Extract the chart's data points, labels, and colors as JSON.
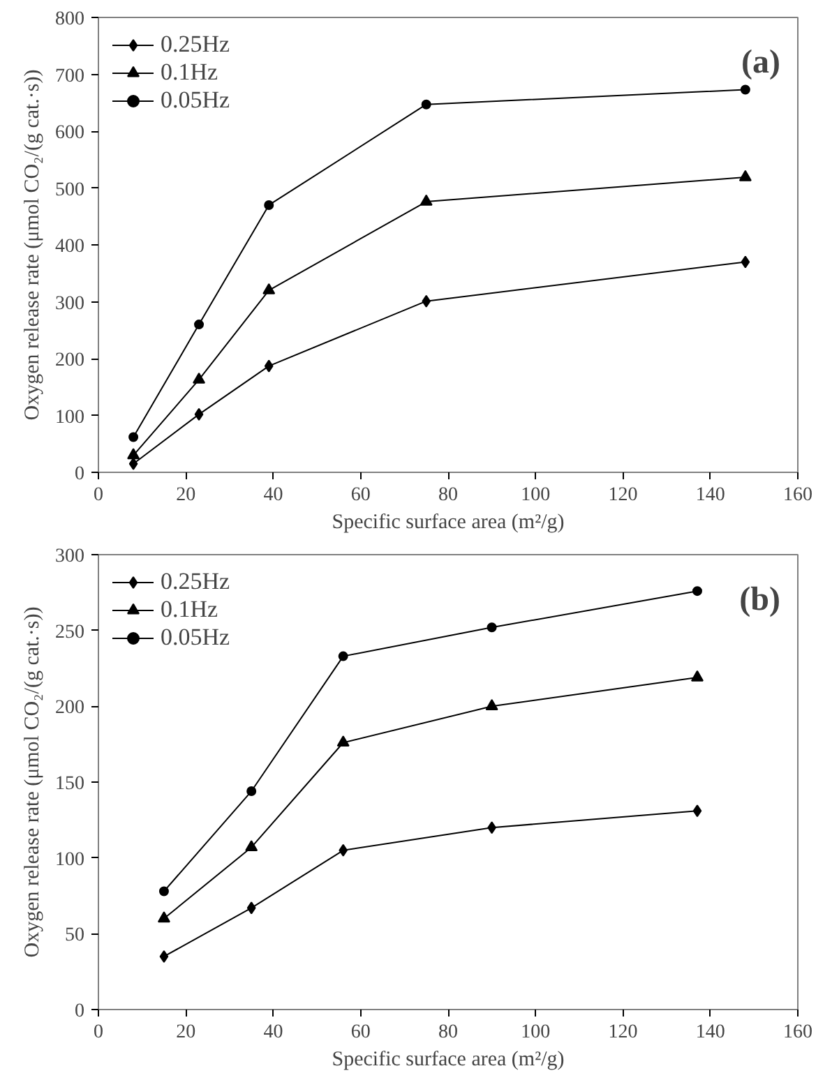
{
  "chart_data": [
    {
      "type": "line",
      "xlabel": "Specific surface area (m²/g)",
      "ylabel": "Oxygen release rate (μmol CO₂/(g cat.·s))",
      "annotations": [
        "(a)"
      ],
      "x": [
        8,
        23,
        39,
        75,
        148
      ],
      "xlim": [
        0,
        160
      ],
      "xticks": [
        0,
        20,
        40,
        60,
        80,
        100,
        120,
        140,
        160
      ],
      "ylim": [
        0,
        800
      ],
      "yticks": [
        0,
        100,
        200,
        300,
        400,
        500,
        600,
        700,
        800
      ],
      "grid": false,
      "legend": "top left",
      "series": [
        {
          "name": "0.25Hz",
          "color": "#000000",
          "marker": "diamond",
          "values": [
            15,
            102,
            187,
            301,
            370
          ]
        },
        {
          "name": "0.1Hz",
          "color": "#000000",
          "marker": "triangle",
          "values": [
            30,
            163,
            320,
            476,
            519
          ]
        },
        {
          "name": "0.05Hz",
          "color": "#000000",
          "marker": "circle",
          "values": [
            62,
            260,
            470,
            647,
            673
          ]
        }
      ]
    },
    {
      "type": "line",
      "xlabel": "Specific surface area (m²/g)",
      "ylabel": "Oxygen release rate (μmol CO₂/(g cat.·s))",
      "annotations": [
        "(b)"
      ],
      "x": [
        15,
        35,
        56,
        90,
        137
      ],
      "xlim": [
        0,
        160
      ],
      "xticks": [
        0,
        20,
        40,
        60,
        80,
        100,
        120,
        140,
        160
      ],
      "ylim": [
        0,
        300
      ],
      "yticks": [
        0,
        50,
        100,
        150,
        200,
        250,
        300
      ],
      "grid": false,
      "legend": "top left",
      "series": [
        {
          "name": "0.25Hz",
          "color": "#000000",
          "marker": "diamond",
          "values": [
            35,
            67,
            105,
            120,
            131
          ]
        },
        {
          "name": "0.1Hz",
          "color": "#000000",
          "marker": "triangle",
          "values": [
            60,
            107,
            176,
            200,
            219
          ]
        },
        {
          "name": "0.05Hz",
          "color": "#000000",
          "marker": "circle",
          "values": [
            78,
            144,
            233,
            252,
            276
          ]
        }
      ]
    }
  ]
}
